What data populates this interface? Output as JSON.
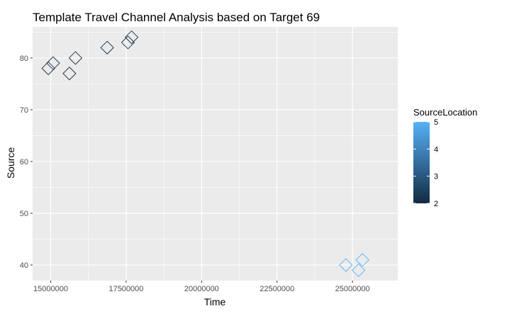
{
  "chart_data": {
    "type": "scatter",
    "title": "Template Travel Channel Analysis based on Target 69",
    "xlabel": "Time",
    "ylabel": "Source",
    "xlim": [
      14400000,
      26500000
    ],
    "ylim": [
      37,
      86
    ],
    "x_ticks": [
      15000000,
      17500000,
      20000000,
      22500000,
      25000000
    ],
    "x_tick_labels": [
      "15000000",
      "17500000",
      "20000000",
      "22500000",
      "25000000"
    ],
    "y_ticks": [
      40,
      50,
      60,
      70,
      80
    ],
    "y_tick_labels": [
      "40",
      "50",
      "60",
      "70",
      "80"
    ],
    "grid": true,
    "marker": "open-diamond",
    "color_scale": {
      "title": "SourceLocation",
      "min": 2,
      "max": 5,
      "low_color": "#132b43",
      "high_color": "#56b1f7",
      "ticks": [
        2,
        3,
        4,
        5
      ],
      "tick_labels": [
        "2",
        "3",
        "4",
        "5"
      ],
      "legend_position": "right"
    },
    "points": [
      {
        "x": 14920000,
        "y": 78,
        "color_value": 2
      },
      {
        "x": 15080000,
        "y": 79,
        "color_value": 2
      },
      {
        "x": 15620000,
        "y": 77,
        "color_value": 2
      },
      {
        "x": 15820000,
        "y": 80,
        "color_value": 2
      },
      {
        "x": 16870000,
        "y": 82,
        "color_value": 2
      },
      {
        "x": 17560000,
        "y": 83,
        "color_value": 2
      },
      {
        "x": 17680000,
        "y": 84,
        "color_value": 2
      },
      {
        "x": 24780000,
        "y": 40,
        "color_value": 5
      },
      {
        "x": 25200000,
        "y": 39,
        "color_value": 5
      },
      {
        "x": 25330000,
        "y": 41,
        "color_value": 5
      }
    ]
  }
}
